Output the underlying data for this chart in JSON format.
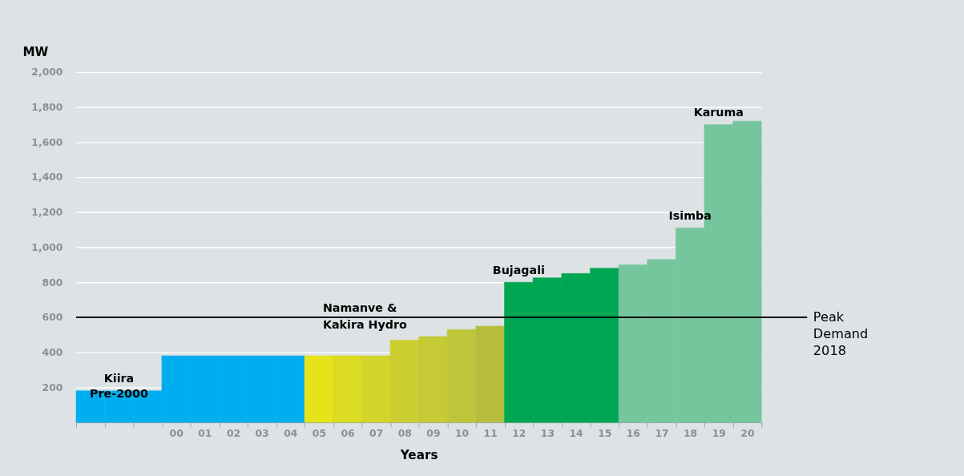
{
  "chart_data": {
    "type": "bar",
    "ylabel": "MW",
    "xlabel": "Years",
    "categories": [
      null,
      null,
      null,
      "00",
      "01",
      "02",
      "03",
      "04",
      "05",
      "06",
      "07",
      "08",
      "09",
      "10",
      "11",
      "12",
      "13",
      "14",
      "15",
      "16",
      "17",
      "18",
      "19",
      "20"
    ],
    "values": [
      180,
      180,
      180,
      380,
      380,
      380,
      380,
      380,
      380,
      380,
      380,
      470,
      490,
      530,
      550,
      800,
      825,
      850,
      880,
      900,
      930,
      1110,
      1700,
      1720
    ],
    "colors": [
      "#00aeef",
      "#00aeef",
      "#00aeef",
      "#00aeef",
      "#00aeef",
      "#00aeef",
      "#00aeef",
      "#00aeef",
      "#e6e31b",
      "#dcdc22",
      "#d4d52a",
      "#cccf30",
      "#c5ca35",
      "#bfc53a",
      "#b6bd3e",
      "#00a651",
      "#00a651",
      "#00a651",
      "#00a651",
      "#76c69d",
      "#76c69d",
      "#76c69d",
      "#76c69d",
      "#76c69d"
    ],
    "ylim": [
      0,
      2000
    ],
    "yticks": [
      200,
      400,
      600,
      800,
      {
        "value": 1000,
        "label": "1,000"
      },
      {
        "value": 1200,
        "label": "1,200"
      },
      {
        "value": 1400,
        "label": "1,400"
      },
      {
        "value": 1600,
        "label": "1,600"
      },
      {
        "value": 1800,
        "label": "1,800"
      },
      {
        "value": 2000,
        "label": "2,000"
      }
    ],
    "grid": "y",
    "ref_lines": [
      {
        "axis": "y",
        "value": 600,
        "label": "Peak\nDemand\n2018",
        "color": "#000000"
      }
    ],
    "annotations": [
      {
        "text": "Kiira\nPre-2000",
        "y": 180
      },
      "Namanve &\nKakira Hydro",
      {
        "text": "Bujagali",
        "x": "12",
        "y": 800
      },
      {
        "text": "Isimba",
        "x": "18",
        "y": 1110
      },
      {
        "text": "Karuma",
        "x": "19",
        "y": 1700
      }
    ]
  }
}
